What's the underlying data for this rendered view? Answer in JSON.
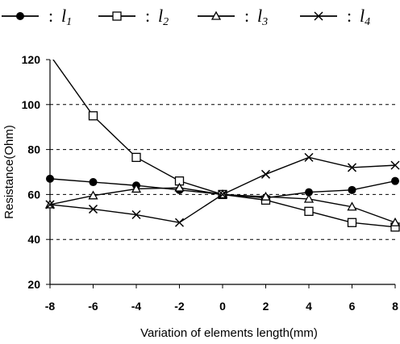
{
  "chart_data": {
    "type": "line",
    "x": [
      -8,
      -6,
      -4,
      -2,
      0,
      2,
      4,
      6,
      8
    ],
    "xlabel": "Variation of elements length(mm)",
    "ylabel": "Resistance(Ohm)",
    "xlim": [
      -8,
      8
    ],
    "ylim": [
      20,
      120
    ],
    "x_ticks": [
      "-8",
      "-6",
      "-4",
      "-2",
      "0",
      "2",
      "4",
      "6",
      "8"
    ],
    "y_ticks": [
      "20",
      "40",
      "60",
      "80",
      "100",
      "120"
    ],
    "grid": "horizontal dashed",
    "legend_position": "top",
    "series": [
      {
        "name": "l",
        "subscript": "1",
        "marker": "filled-circle",
        "values": [
          67,
          65.5,
          64,
          62,
          60,
          58.5,
          61,
          62,
          66
        ]
      },
      {
        "name": "l",
        "subscript": "2",
        "marker": "open-square",
        "values": [
          122,
          95,
          76.5,
          66,
          60,
          57.5,
          52.5,
          47.5,
          45.5
        ]
      },
      {
        "name": "l",
        "subscript": "3",
        "marker": "open-triangle",
        "values": [
          55.5,
          59.5,
          62.5,
          63,
          60,
          59,
          58,
          54.5,
          47.5
        ]
      },
      {
        "name": "l",
        "subscript": "4",
        "marker": "x-cross",
        "values": [
          55.5,
          53.5,
          51,
          47.5,
          60,
          69,
          76.5,
          72,
          73
        ]
      }
    ]
  }
}
